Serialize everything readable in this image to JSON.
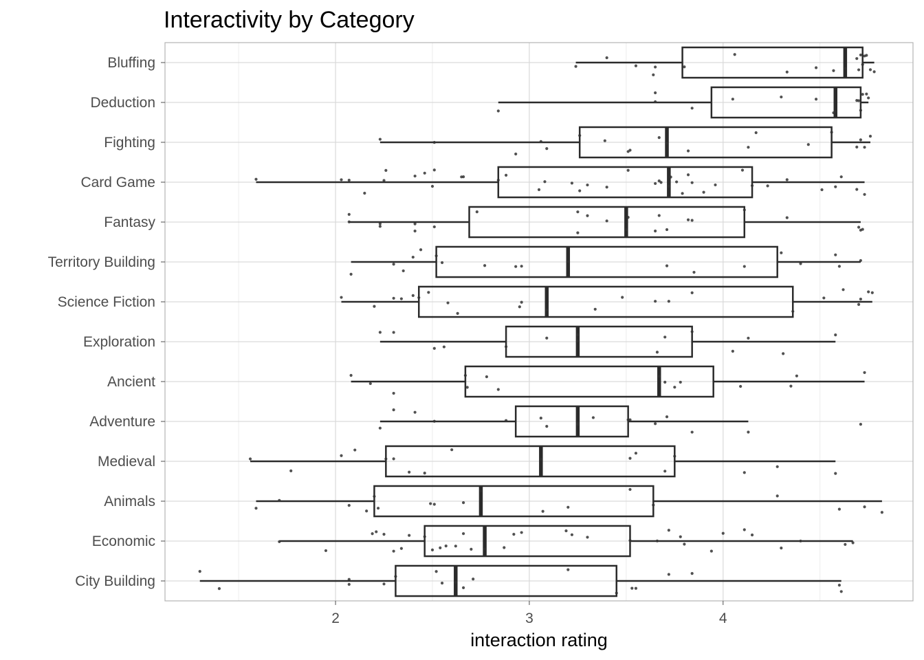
{
  "chart_data": {
    "type": "box",
    "title": "Interactivity by Category",
    "xlabel": "interaction rating",
    "ylabel": "",
    "xlim": [
      1.12,
      4.98
    ],
    "x_ticks": [
      2,
      3,
      4
    ],
    "grid": true,
    "colors": {
      "panel_border": "#b3b3b3",
      "grid_major": "#d9d9d9",
      "grid_minor": "#ececec",
      "box_stroke": "#2b2b2b",
      "point": "#333333"
    },
    "categories": [
      "Bluffing",
      "Deduction",
      "Fighting",
      "Card Game",
      "Fantasy",
      "Territory Building",
      "Science Fiction",
      "Exploration",
      "Ancient",
      "Adventure",
      "Medieval",
      "Animals",
      "Economic",
      "City Building"
    ],
    "boxes": [
      {
        "category": "Bluffing",
        "whisker_low": 3.24,
        "q1": 3.79,
        "median": 4.63,
        "q3": 4.72,
        "whisker_high": 4.78
      },
      {
        "category": "Deduction",
        "whisker_low": 2.84,
        "q1": 3.94,
        "median": 4.58,
        "q3": 4.71,
        "whisker_high": 4.75
      },
      {
        "category": "Fighting",
        "whisker_low": 2.23,
        "q1": 3.26,
        "median": 3.71,
        "q3": 4.56,
        "whisker_high": 4.76
      },
      {
        "category": "Card Game",
        "whisker_low": 1.59,
        "q1": 2.84,
        "median": 3.72,
        "q3": 4.15,
        "whisker_high": 4.73
      },
      {
        "category": "Fantasy",
        "whisker_low": 2.07,
        "q1": 2.69,
        "median": 3.5,
        "q3": 4.11,
        "whisker_high": 4.71
      },
      {
        "category": "Territory Building",
        "whisker_low": 2.08,
        "q1": 2.52,
        "median": 3.2,
        "q3": 4.28,
        "whisker_high": 4.71
      },
      {
        "category": "Science Fiction",
        "whisker_low": 2.03,
        "q1": 2.43,
        "median": 3.09,
        "q3": 4.36,
        "whisker_high": 4.77
      },
      {
        "category": "Exploration",
        "whisker_low": 2.23,
        "q1": 2.88,
        "median": 3.25,
        "q3": 3.84,
        "whisker_high": 4.58
      },
      {
        "category": "Ancient",
        "whisker_low": 2.08,
        "q1": 2.67,
        "median": 3.67,
        "q3": 3.95,
        "whisker_high": 4.73
      },
      {
        "category": "Adventure",
        "whisker_low": 2.23,
        "q1": 2.93,
        "median": 3.25,
        "q3": 3.51,
        "whisker_high": 4.13
      },
      {
        "category": "Medieval",
        "whisker_low": 1.56,
        "q1": 2.26,
        "median": 3.06,
        "q3": 3.75,
        "whisker_high": 4.58
      },
      {
        "category": "Animals",
        "whisker_low": 1.59,
        "q1": 2.2,
        "median": 2.75,
        "q3": 3.64,
        "whisker_high": 4.82
      },
      {
        "category": "Economic",
        "whisker_low": 1.71,
        "q1": 2.46,
        "median": 2.77,
        "q3": 3.52,
        "whisker_high": 4.67
      },
      {
        "category": "City Building",
        "whisker_low": 1.3,
        "q1": 2.31,
        "median": 2.62,
        "q3": 3.45,
        "whisker_high": 4.61
      }
    ],
    "points": [
      {
        "category": "Bluffing",
        "values": [
          3.24,
          3.4,
          3.55,
          3.64,
          3.65,
          3.8,
          4.06,
          4.33,
          4.48,
          4.57,
          4.63,
          4.69,
          4.7,
          4.71,
          4.72,
          4.73,
          4.74,
          4.76,
          4.78
        ]
      },
      {
        "category": "Deduction",
        "values": [
          2.84,
          3.65,
          3.65,
          3.84,
          4.05,
          4.3,
          4.48,
          4.57,
          4.58,
          4.69,
          4.7,
          4.71,
          4.72,
          4.74,
          4.75
        ]
      },
      {
        "category": "Fighting",
        "values": [
          2.23,
          2.51,
          2.93,
          3.06,
          3.09,
          3.26,
          3.39,
          3.51,
          3.52,
          3.67,
          3.71,
          3.82,
          4.13,
          4.17,
          4.44,
          4.56,
          4.69,
          4.71,
          4.73,
          4.76
        ]
      },
      {
        "category": "Card Game",
        "values": [
          1.59,
          2.03,
          2.07,
          2.15,
          2.25,
          2.26,
          2.41,
          2.46,
          2.5,
          2.51,
          2.65,
          2.66,
          2.84,
          2.88,
          3.05,
          3.08,
          3.22,
          3.26,
          3.3,
          3.4,
          3.51,
          3.65,
          3.67,
          3.68,
          3.72,
          3.73,
          3.76,
          3.79,
          3.82,
          3.84,
          3.9,
          3.96,
          4.1,
          4.15,
          4.23,
          4.33,
          4.51,
          4.58,
          4.61,
          4.69,
          4.73
        ]
      },
      {
        "category": "Fantasy",
        "values": [
          2.07,
          2.07,
          2.23,
          2.23,
          2.41,
          2.41,
          2.51,
          2.73,
          3.25,
          3.25,
          3.3,
          3.4,
          3.5,
          3.51,
          3.65,
          3.67,
          3.71,
          3.82,
          3.84,
          4.11,
          4.33,
          4.7,
          4.71,
          4.72
        ]
      },
      {
        "category": "Territory Building",
        "values": [
          2.08,
          2.3,
          2.35,
          2.4,
          2.44,
          2.52,
          2.55,
          2.77,
          2.93,
          2.96,
          3.2,
          3.71,
          3.85,
          4.11,
          4.3,
          4.4,
          4.58,
          4.6,
          4.71
        ]
      },
      {
        "category": "Science Fiction",
        "values": [
          2.03,
          2.2,
          2.3,
          2.34,
          2.4,
          2.43,
          2.48,
          2.58,
          2.63,
          2.95,
          2.96,
          3.09,
          3.34,
          3.48,
          3.65,
          3.72,
          3.84,
          4.36,
          4.52,
          4.62,
          4.7,
          4.71,
          4.75,
          4.77
        ]
      },
      {
        "category": "Exploration",
        "values": [
          2.23,
          2.3,
          2.51,
          2.56,
          2.88,
          3.09,
          3.25,
          3.25,
          3.66,
          3.7,
          3.84,
          4.05,
          4.13,
          4.31,
          4.58
        ]
      },
      {
        "category": "Ancient",
        "values": [
          2.08,
          2.18,
          2.3,
          2.67,
          2.68,
          2.78,
          2.84,
          3.67,
          3.7,
          3.75,
          3.78,
          4.09,
          4.35,
          4.38,
          4.73
        ]
      },
      {
        "category": "Adventure",
        "values": [
          2.23,
          2.3,
          2.41,
          2.51,
          2.88,
          3.06,
          3.09,
          3.25,
          3.25,
          3.33,
          3.51,
          3.52,
          3.65,
          3.71,
          3.84,
          4.13,
          4.71
        ]
      },
      {
        "category": "Medieval",
        "values": [
          1.56,
          1.77,
          2.03,
          2.1,
          2.26,
          2.3,
          2.38,
          2.46,
          2.6,
          3.06,
          3.52,
          3.55,
          3.7,
          3.75,
          4.11,
          4.28,
          4.58
        ]
      },
      {
        "category": "Animals",
        "values": [
          1.59,
          1.71,
          2.07,
          2.16,
          2.2,
          2.22,
          2.49,
          2.51,
          2.66,
          2.75,
          3.07,
          3.2,
          3.52,
          3.64,
          4.28,
          4.6,
          4.73,
          4.82
        ]
      },
      {
        "category": "Economic",
        "values": [
          1.71,
          1.95,
          2.19,
          2.21,
          2.25,
          2.3,
          2.34,
          2.38,
          2.46,
          2.5,
          2.54,
          2.57,
          2.62,
          2.66,
          2.7,
          2.77,
          2.87,
          2.92,
          2.96,
          3.19,
          3.22,
          3.3,
          3.52,
          3.66,
          3.72,
          3.78,
          3.8,
          3.94,
          4.0,
          4.11,
          4.15,
          4.3,
          4.4,
          4.63,
          4.67
        ]
      },
      {
        "category": "City Building",
        "values": [
          1.3,
          1.4,
          2.07,
          2.07,
          2.25,
          2.31,
          2.52,
          2.55,
          2.62,
          2.66,
          2.71,
          3.2,
          3.45,
          3.53,
          3.55,
          3.72,
          3.84,
          4.6,
          4.61
        ]
      }
    ]
  }
}
